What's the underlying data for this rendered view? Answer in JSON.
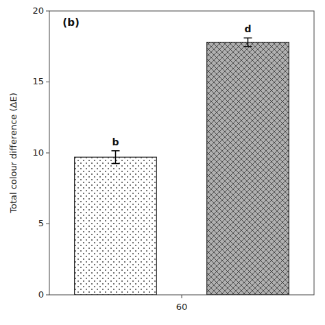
{
  "chart_data": {
    "type": "bar",
    "title": "(b)",
    "ylabel": "Total colour difference (ΔE)",
    "categories": [
      "60"
    ],
    "series": [
      {
        "color": "white",
        "values": [
          9.7
        ],
        "errors": [
          0.45
        ],
        "annotations": [
          "b"
        ]
      },
      {
        "color": "#b0b0b0",
        "values": [
          17.8
        ],
        "errors": [
          0.3
        ],
        "annotations": [
          "d"
        ]
      }
    ],
    "ylim": [
      0,
      20
    ],
    "yticks": [
      0,
      5,
      10,
      15,
      20
    ],
    "grid": false
  }
}
